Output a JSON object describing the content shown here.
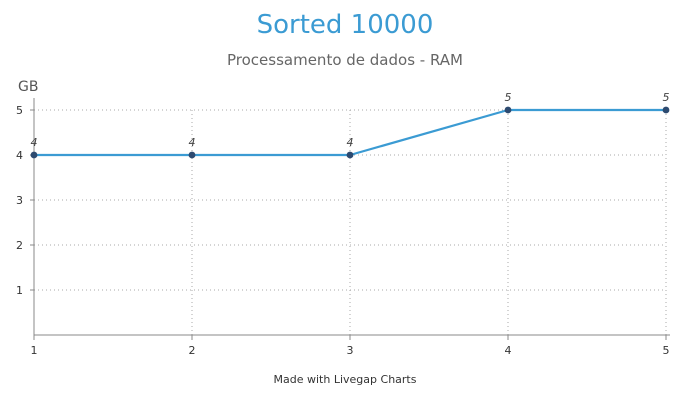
{
  "chart_data": {
    "type": "line",
    "title": "Sorted 10000",
    "subtitle": "Processamento de dados - RAM",
    "ylabel": "GB",
    "xlabel": "",
    "x": [
      1,
      2,
      3,
      4,
      5
    ],
    "series": [
      {
        "values": [
          4,
          4,
          4,
          5,
          5
        ]
      }
    ],
    "data_labels": [
      "4",
      "4",
      "4",
      "5",
      "5"
    ],
    "xlim": [
      1,
      5
    ],
    "ylim": [
      0,
      5
    ],
    "x_ticks": [
      "1",
      "2",
      "3",
      "4",
      "5"
    ],
    "y_ticks": [
      "1",
      "2",
      "3",
      "4",
      "5"
    ],
    "grid": true,
    "line_color": "#3b9bd3",
    "marker_color": "#2d4a70"
  },
  "footer": {
    "credit": "Made with Livegap Charts"
  }
}
